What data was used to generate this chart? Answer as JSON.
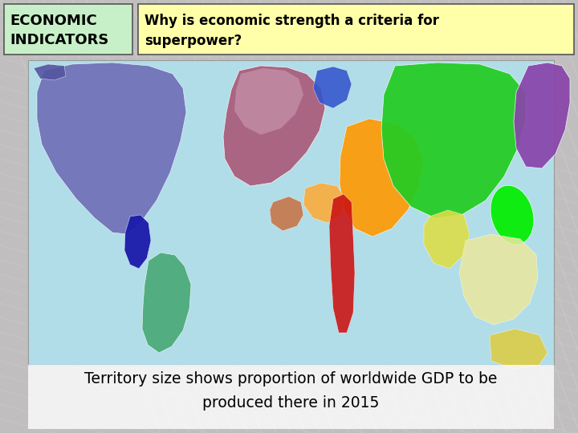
{
  "title_left": "ECONOMIC\nINDICATORS",
  "title_right": "Why is economic strength a criteria for\nsuperpower?",
  "caption": "Territory size shows proportion of worldwide GDP to be\nproduced there in 2015",
  "header_left_bg": "#c8f0c8",
  "header_right_bg": "#ffffaa",
  "slide_bg": "#b8b8b8",
  "map_bg": "#b0dde8",
  "colors": {
    "north_america": "#7070b8",
    "mexico": "#1a1aaa",
    "south_america": "#4aaa78",
    "europe_w": "#aa5575",
    "europe_e": "#c890a0",
    "blue_de": "#3355cc",
    "orange_me": "#ff9900",
    "orange2": "#ffaa00",
    "red_strip": "#cc1111",
    "china": "#22cc22",
    "japan": "#00ee00",
    "russia": "#8844aa",
    "india": "#dddd44",
    "sea": "#e8e8a0",
    "australia": "#ddcc44",
    "africa": "#c87040"
  },
  "figsize": [
    7.2,
    5.4
  ],
  "dpi": 100
}
